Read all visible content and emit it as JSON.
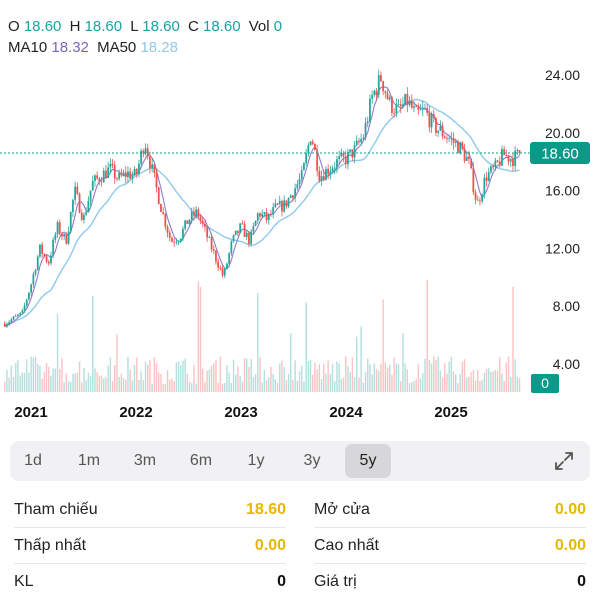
{
  "ohlc": {
    "o_label": "O",
    "o_value": "18.60",
    "h_label": "H",
    "h_value": "18.60",
    "l_label": "L",
    "l_value": "18.60",
    "c_label": "C",
    "c_value": "18.60",
    "vol_label": "Vol",
    "vol_value": "0"
  },
  "ma": {
    "ma10_label": "MA10",
    "ma10_value": "18.32",
    "ma50_label": "MA50",
    "ma50_value": "18.28"
  },
  "colors": {
    "up": "#26a69a",
    "down": "#ef5350",
    "last_price": "#0a9a8a",
    "ma10": "#7b64c4",
    "ma50": "#8ec9ee",
    "highlight": "#e6b800"
  },
  "chart_data": {
    "type": "candlestick",
    "x_labels": [
      "2021",
      "2022",
      "2023",
      "2024",
      "2025"
    ],
    "y_ticks": [
      "24.00",
      "20.00",
      "16.00",
      "12.00",
      "8.00",
      "4.00"
    ],
    "ylim": [
      2,
      26
    ],
    "last_price_label": "18.60",
    "volume_label": "0",
    "price_path": [
      [
        "2020-10",
        6.8
      ],
      [
        "2020-12",
        7.5
      ],
      [
        "2021-01",
        9.5
      ],
      [
        "2021-02",
        12.0
      ],
      [
        "2021-03",
        11.0
      ],
      [
        "2021-04",
        13.5
      ],
      [
        "2021-05",
        12.5
      ],
      [
        "2021-06",
        16.0
      ],
      [
        "2021-07",
        14.0
      ],
      [
        "2021-08",
        16.5
      ],
      [
        "2021-09",
        17.0
      ],
      [
        "2021-10",
        17.5
      ],
      [
        "2021-11",
        16.8
      ],
      [
        "2021-12",
        17.2
      ],
      [
        "2022-01",
        17.0
      ],
      [
        "2022-02",
        19.5
      ],
      [
        "2022-03",
        17.0
      ],
      [
        "2022-04",
        14.5
      ],
      [
        "2022-05",
        12.5
      ],
      [
        "2022-06",
        12.8
      ],
      [
        "2022-07",
        14.0
      ],
      [
        "2022-08",
        14.5
      ],
      [
        "2022-09",
        13.0
      ],
      [
        "2022-10",
        11.5
      ],
      [
        "2022-11",
        10.0
      ],
      [
        "2022-12",
        12.5
      ],
      [
        "2023-01",
        13.5
      ],
      [
        "2023-02",
        12.5
      ],
      [
        "2023-03",
        14.5
      ],
      [
        "2023-04",
        14.0
      ],
      [
        "2023-05",
        14.8
      ],
      [
        "2023-06",
        15.0
      ],
      [
        "2023-07",
        16.0
      ],
      [
        "2023-08",
        17.0
      ],
      [
        "2023-09",
        20.0
      ],
      [
        "2023-10",
        17.0
      ],
      [
        "2023-11",
        17.5
      ],
      [
        "2023-12",
        18.0
      ],
      [
        "2024-01",
        18.2
      ],
      [
        "2024-02",
        18.8
      ],
      [
        "2024-03",
        19.8
      ],
      [
        "2024-04",
        22.5
      ],
      [
        "2024-05",
        23.8
      ],
      [
        "2024-06",
        22.0
      ],
      [
        "2024-07",
        21.5
      ],
      [
        "2024-08",
        22.2
      ],
      [
        "2024-09",
        21.2
      ],
      [
        "2024-10",
        21.5
      ],
      [
        "2024-11",
        20.5
      ],
      [
        "2024-12",
        20.0
      ],
      [
        "2025-01",
        19.5
      ],
      [
        "2025-02",
        19.0
      ],
      [
        "2025-03",
        18.0
      ],
      [
        "2025-04",
        15.0
      ],
      [
        "2025-05",
        17.0
      ],
      [
        "2025-06",
        17.5
      ],
      [
        "2025-07",
        18.5
      ],
      [
        "2025-08",
        18.2
      ],
      [
        "2025-09",
        18.6
      ]
    ]
  },
  "timeframes": [
    "1d",
    "1m",
    "3m",
    "6m",
    "1y",
    "3y",
    "5y"
  ],
  "active_timeframe": "5y",
  "stats": {
    "reference_label": "Tham chiếu",
    "reference_value": "18.60",
    "open_label": "Mở cửa",
    "open_value": "0.00",
    "low_label": "Thấp nhất",
    "low_value": "0.00",
    "high_label": "Cao nhất",
    "high_value": "0.00",
    "volume_label": "KL",
    "volume_value": "0",
    "value_label": "Giá trị",
    "value_value": "0"
  }
}
